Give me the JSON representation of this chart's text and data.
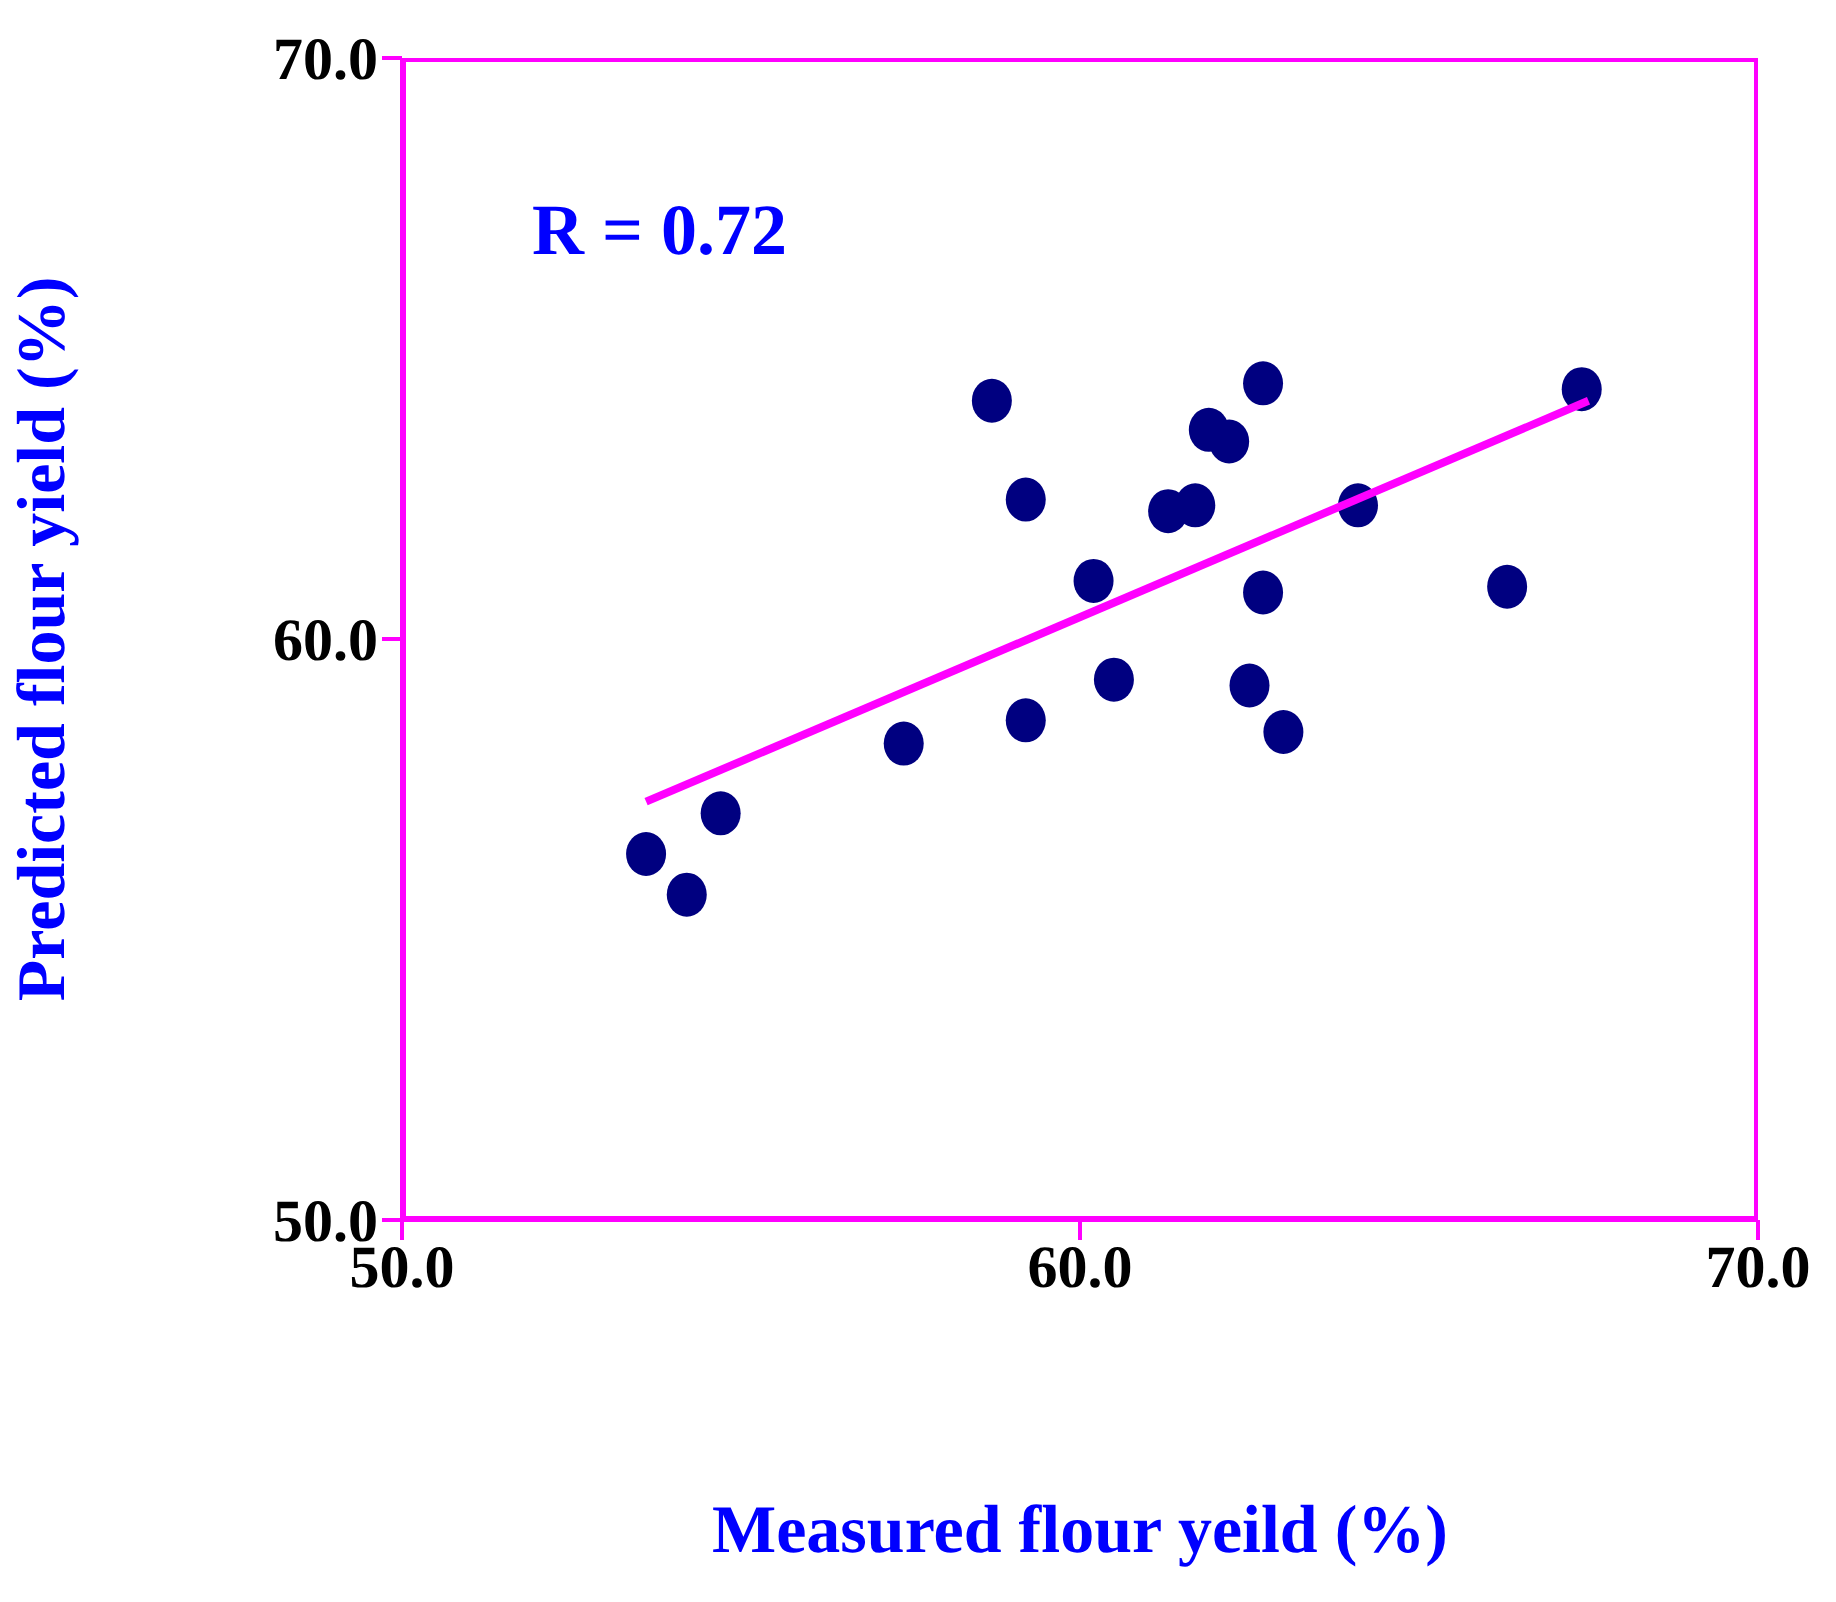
{
  "chart_data": {
    "type": "scatter",
    "xlabel": "Measured flour yeild (%)",
    "ylabel": "Predicted flour yield (%)",
    "annotations": [
      "R = 0.72"
    ],
    "xlim": [
      50,
      70
    ],
    "ylim": [
      50,
      70
    ],
    "xticks": [
      {
        "value": 50,
        "label": "50.0"
      },
      {
        "value": 60,
        "label": "60.0"
      },
      {
        "value": 70,
        "label": "70.0"
      }
    ],
    "yticks": [
      {
        "value": 50,
        "label": "50.0"
      },
      {
        "value": 60,
        "label": "60.0"
      },
      {
        "value": 70,
        "label": "70.0"
      }
    ],
    "marker": "circle",
    "series": [
      {
        "color": "#000080",
        "x": [
          53.6,
          54.2,
          54.7,
          57.4,
          58.7,
          59.2,
          59.2,
          60.2,
          60.5,
          61.3,
          61.7,
          61.9,
          62.2,
          62.7,
          62.5,
          62.7,
          63.0,
          64.1,
          66.3,
          67.4
        ],
        "values": [
          56.3,
          55.6,
          57.0,
          58.2,
          64.1,
          62.4,
          58.6,
          61.0,
          59.3,
          62.2,
          62.3,
          63.6,
          63.4,
          64.4,
          59.2,
          60.8,
          58.4,
          62.3,
          60.9,
          64.3
        ]
      },
      {
        "type": "line",
        "marker": "none",
        "color": "#ff00ff",
        "x": [
          53.6,
          67.5
        ],
        "values": [
          57.2,
          64.1
        ]
      }
    ]
  }
}
